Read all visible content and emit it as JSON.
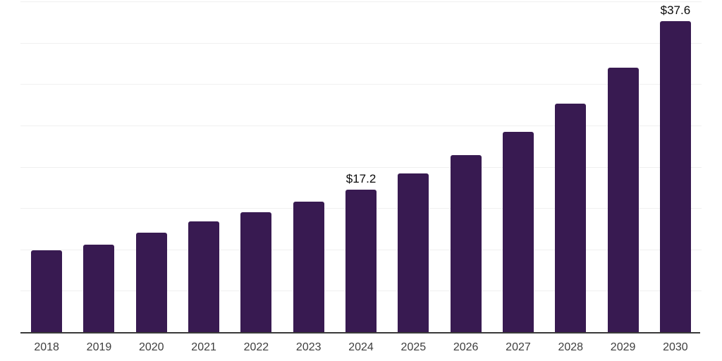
{
  "chart_data": {
    "type": "bar",
    "title": "",
    "xlabel": "",
    "ylabel": "",
    "categories": [
      "2018",
      "2019",
      "2020",
      "2021",
      "2022",
      "2023",
      "2024",
      "2025",
      "2026",
      "2027",
      "2028",
      "2029",
      "2030"
    ],
    "values": [
      9.9,
      10.6,
      12.0,
      13.4,
      14.5,
      15.8,
      17.2,
      19.2,
      21.4,
      24.2,
      27.6,
      32.0,
      37.6
    ],
    "annotations": [
      {
        "category": "2024",
        "text": "$17.2"
      },
      {
        "category": "2030",
        "text": "$37.6"
      }
    ],
    "ylim": [
      0,
      40
    ],
    "gridline_step": 5,
    "grid": true,
    "legend": false,
    "y_tick_labels_visible": false,
    "colors": {
      "bar": "#381a51",
      "gridline": "#f0f0f0",
      "axis": "#3a3a3a",
      "tick_label": "#3e3e3e",
      "value_label": "#0a0a0a",
      "background": "#ffffff"
    }
  }
}
